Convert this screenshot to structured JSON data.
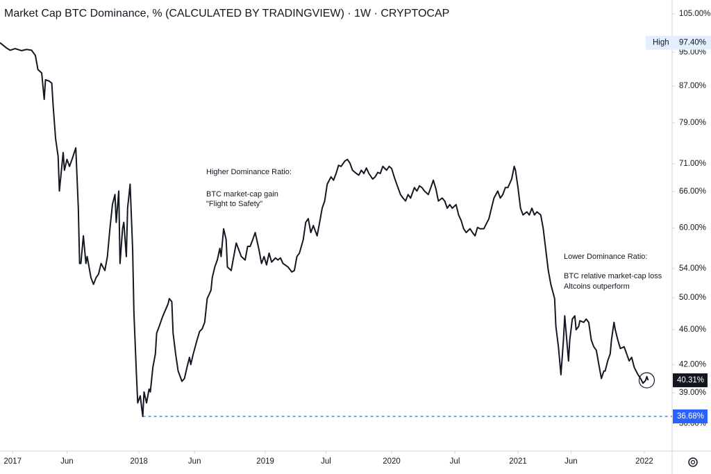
{
  "chart_data": {
    "type": "line",
    "title": "Market Cap BTC Dominance, % (CALCULATED BY TRADINGVIEW) · 1W · CRYPTOCAP",
    "log_scale": true,
    "grid": false,
    "color": "#131722",
    "x": [
      2016.9,
      2016.95,
      2016.98,
      2017.02,
      2017.07,
      2017.11,
      2017.15,
      2017.18,
      2017.2,
      2017.23,
      2017.25,
      2017.26,
      2017.29,
      2017.31,
      2017.32,
      2017.34,
      2017.36,
      2017.37,
      2017.4,
      2017.41,
      2017.43,
      2017.45,
      2017.47,
      2017.5,
      2017.52,
      2017.53,
      2017.54,
      2017.56,
      2017.58,
      2017.59,
      2017.62,
      2017.64,
      2017.66,
      2017.68,
      2017.7,
      2017.73,
      2017.75,
      2017.77,
      2017.79,
      2017.81,
      2017.82,
      2017.84,
      2017.85,
      2017.87,
      2017.88,
      2017.9,
      2017.91,
      2017.93,
      2017.95,
      2017.96,
      2017.98,
      2017.99,
      2018.01,
      2018.03,
      2018.04,
      2018.06,
      2018.08,
      2018.09,
      2018.11,
      2018.13,
      2018.14,
      2018.16,
      2018.18,
      2018.2,
      2018.23,
      2018.24,
      2018.26,
      2018.27,
      2018.29,
      2018.31,
      2018.34,
      2018.36,
      2018.38,
      2018.4,
      2018.41,
      2018.43,
      2018.46,
      2018.48,
      2018.5,
      2018.52,
      2018.54,
      2018.57,
      2018.58,
      2018.6,
      2018.62,
      2018.64,
      2018.65,
      2018.67,
      2018.69,
      2018.7,
      2018.73,
      2018.75,
      2018.77,
      2018.79,
      2018.81,
      2018.84,
      2018.86,
      2018.88,
      2018.9,
      2018.92,
      2018.95,
      2018.97,
      2018.99,
      2019.01,
      2019.03,
      2019.05,
      2019.08,
      2019.1,
      2019.12,
      2019.14,
      2019.18,
      2019.21,
      2019.23,
      2019.25,
      2019.27,
      2019.3,
      2019.32,
      2019.34,
      2019.36,
      2019.38,
      2019.41,
      2019.43,
      2019.45,
      2019.47,
      2019.49,
      2019.52,
      2019.54,
      2019.56,
      2019.58,
      2019.6,
      2019.63,
      2019.65,
      2019.67,
      2019.69,
      2019.71,
      2019.74,
      2019.76,
      2019.78,
      2019.8,
      2019.82,
      2019.85,
      2019.87,
      2019.89,
      2019.91,
      2019.93,
      2019.96,
      2019.98,
      2020.0,
      2020.02,
      2020.04,
      2020.07,
      2020.09,
      2020.11,
      2020.13,
      2020.15,
      2020.18,
      2020.2,
      2020.22,
      2020.24,
      2020.26,
      2020.29,
      2020.31,
      2020.33,
      2020.35,
      2020.37,
      2020.4,
      2020.42,
      2020.44,
      2020.46,
      2020.48,
      2020.51,
      2020.53,
      2020.55,
      2020.57,
      2020.59,
      2020.62,
      2020.64,
      2020.66,
      2020.68,
      2020.7,
      2020.73,
      2020.75,
      2020.77,
      2020.79,
      2020.81,
      2020.84,
      2020.86,
      2020.88,
      2020.9,
      2020.92,
      2020.95,
      2020.97,
      2020.98,
      2021.0,
      2021.02,
      2021.04,
      2021.07,
      2021.09,
      2021.11,
      2021.13,
      2021.15,
      2021.18,
      2021.2,
      2021.22,
      2021.24,
      2021.26,
      2021.29,
      2021.3,
      2021.32,
      2021.34,
      2021.36,
      2021.37,
      2021.4,
      2021.41,
      2021.43,
      2021.45,
      2021.46,
      2021.48,
      2021.49,
      2021.52,
      2021.54,
      2021.56,
      2021.58,
      2021.6,
      2021.62,
      2021.64,
      2021.66,
      2021.68,
      2021.69,
      2021.71,
      2021.73,
      2021.74,
      2021.76,
      2021.77,
      2021.79,
      2021.81,
      2021.84,
      2021.86,
      2021.88,
      2021.9,
      2021.92,
      2021.95,
      2021.97,
      2021.99,
      2022.01,
      2022.02,
      2022.03
    ],
    "values": [
      97.4,
      96.1,
      95.5,
      95.9,
      95.4,
      95.7,
      95.5,
      94.2,
      90.8,
      90.0,
      84.0,
      88.4,
      88.1,
      87.6,
      82.9,
      75.8,
      72.4,
      66.1,
      73.1,
      69.8,
      71.8,
      70.5,
      71.8,
      74.0,
      63.2,
      54.7,
      54.7,
      58.8,
      54.7,
      55.7,
      52.7,
      51.8,
      52.7,
      53.2,
      54.7,
      53.7,
      55.7,
      59.9,
      63.8,
      65.5,
      60.9,
      66.1,
      54.7,
      59.9,
      60.9,
      55.7,
      63.2,
      67.3,
      56.7,
      48.1,
      40.9,
      38.0,
      38.7,
      36.68,
      39.1,
      38.0,
      39.4,
      39.1,
      41.7,
      43.2,
      45.6,
      46.4,
      47.3,
      48.1,
      49.2,
      49.9,
      49.5,
      45.6,
      43.2,
      41.3,
      40.2,
      40.5,
      41.7,
      42.8,
      42.0,
      43.2,
      44.8,
      45.8,
      46.1,
      46.9,
      49.9,
      51.0,
      52.7,
      54.2,
      55.2,
      56.9,
      55.7,
      59.9,
      58.2,
      54.2,
      53.7,
      55.7,
      57.7,
      56.7,
      55.7,
      55.2,
      57.2,
      57.2,
      58.2,
      59.3,
      56.7,
      54.7,
      55.7,
      54.5,
      56.2,
      54.9,
      55.5,
      55.2,
      55.5,
      54.7,
      54.2,
      53.5,
      53.7,
      55.7,
      56.2,
      58.2,
      60.9,
      61.5,
      59.3,
      60.4,
      58.8,
      60.9,
      63.2,
      64.4,
      67.3,
      68.6,
      68.0,
      69.2,
      70.7,
      70.5,
      71.5,
      71.8,
      71.1,
      69.8,
      69.4,
      68.9,
      69.8,
      69.2,
      70.2,
      69.2,
      68.2,
      68.6,
      69.4,
      69.2,
      70.5,
      69.8,
      70.5,
      70.1,
      68.6,
      67.3,
      65.5,
      64.9,
      64.4,
      65.5,
      64.9,
      66.7,
      66.1,
      67.0,
      66.7,
      66.1,
      65.5,
      66.7,
      68.0,
      66.5,
      64.4,
      64.9,
      64.4,
      63.2,
      63.8,
      63.2,
      63.8,
      62.1,
      61.2,
      59.9,
      59.3,
      59.9,
      59.3,
      58.8,
      60.1,
      59.9,
      59.9,
      60.7,
      61.5,
      63.2,
      64.9,
      66.1,
      64.9,
      65.5,
      66.7,
      66.7,
      68.2,
      70.5,
      69.8,
      66.7,
      63.2,
      62.1,
      62.6,
      62.1,
      63.2,
      62.1,
      62.6,
      62.1,
      59.9,
      56.7,
      53.7,
      51.8,
      49.9,
      46.4,
      44.0,
      40.9,
      44.8,
      47.7,
      42.4,
      44.8,
      47.3,
      47.7,
      46.0,
      46.4,
      47.1,
      46.9,
      47.3,
      46.9,
      44.8,
      44.0,
      43.6,
      42.0,
      40.5,
      41.3,
      41.3,
      42.4,
      43.2,
      44.8,
      46.9,
      46.0,
      44.8,
      43.8,
      44.0,
      43.2,
      42.4,
      42.8,
      41.7,
      40.9,
      40.5,
      40.0,
      40.3,
      40.7,
      40.31
    ],
    "xlim": [
      2016.9,
      2022.22
    ],
    "xticks": [
      {
        "value": 2017,
        "label": "2017"
      },
      {
        "value": 2017.43,
        "label": "Jun"
      },
      {
        "value": 2018,
        "label": "2018"
      },
      {
        "value": 2018.44,
        "label": "Jun"
      },
      {
        "value": 2019,
        "label": "2019"
      },
      {
        "value": 2019.48,
        "label": "Jul"
      },
      {
        "value": 2020,
        "label": "2020"
      },
      {
        "value": 2020.5,
        "label": "Jul"
      },
      {
        "value": 2021,
        "label": "2021"
      },
      {
        "value": 2021.42,
        "label": "Jun"
      },
      {
        "value": 2022,
        "label": "2022"
      }
    ],
    "ylim": [
      33.5,
      108.9
    ],
    "yticks": [
      {
        "value": 105,
        "label": "105.00%"
      },
      {
        "value": 95,
        "label": "95.00%"
      },
      {
        "value": 87,
        "label": "87.00%"
      },
      {
        "value": 79,
        "label": "79.00%"
      },
      {
        "value": 71,
        "label": "71.00%"
      },
      {
        "value": 66,
        "label": "66.00%"
      },
      {
        "value": 60,
        "label": "60.00%"
      },
      {
        "value": 54,
        "label": "54.00%"
      },
      {
        "value": 50,
        "label": "50.00%"
      },
      {
        "value": 46,
        "label": "46.00%"
      },
      {
        "value": 42,
        "label": "42.00%"
      },
      {
        "value": 39,
        "label": "39.00%"
      },
      {
        "value": 36,
        "label": "36.00%"
      }
    ],
    "high": {
      "text": "High",
      "value": 97.4,
      "label": "97.40%"
    },
    "last": {
      "value": 40.31,
      "label": "40.31%"
    },
    "low_line": {
      "value": 36.68,
      "label": "36.68%",
      "color": "#2962ff"
    },
    "annotations": {
      "higher": [
        "Higher Dominance Ratio:",
        "BTC market-cap gain",
        "\"Flight to Safety\""
      ],
      "lower": [
        "Lower Dominance Ratio:",
        "BTC relative market-cap loss",
        "Altcoins outperform"
      ]
    }
  }
}
